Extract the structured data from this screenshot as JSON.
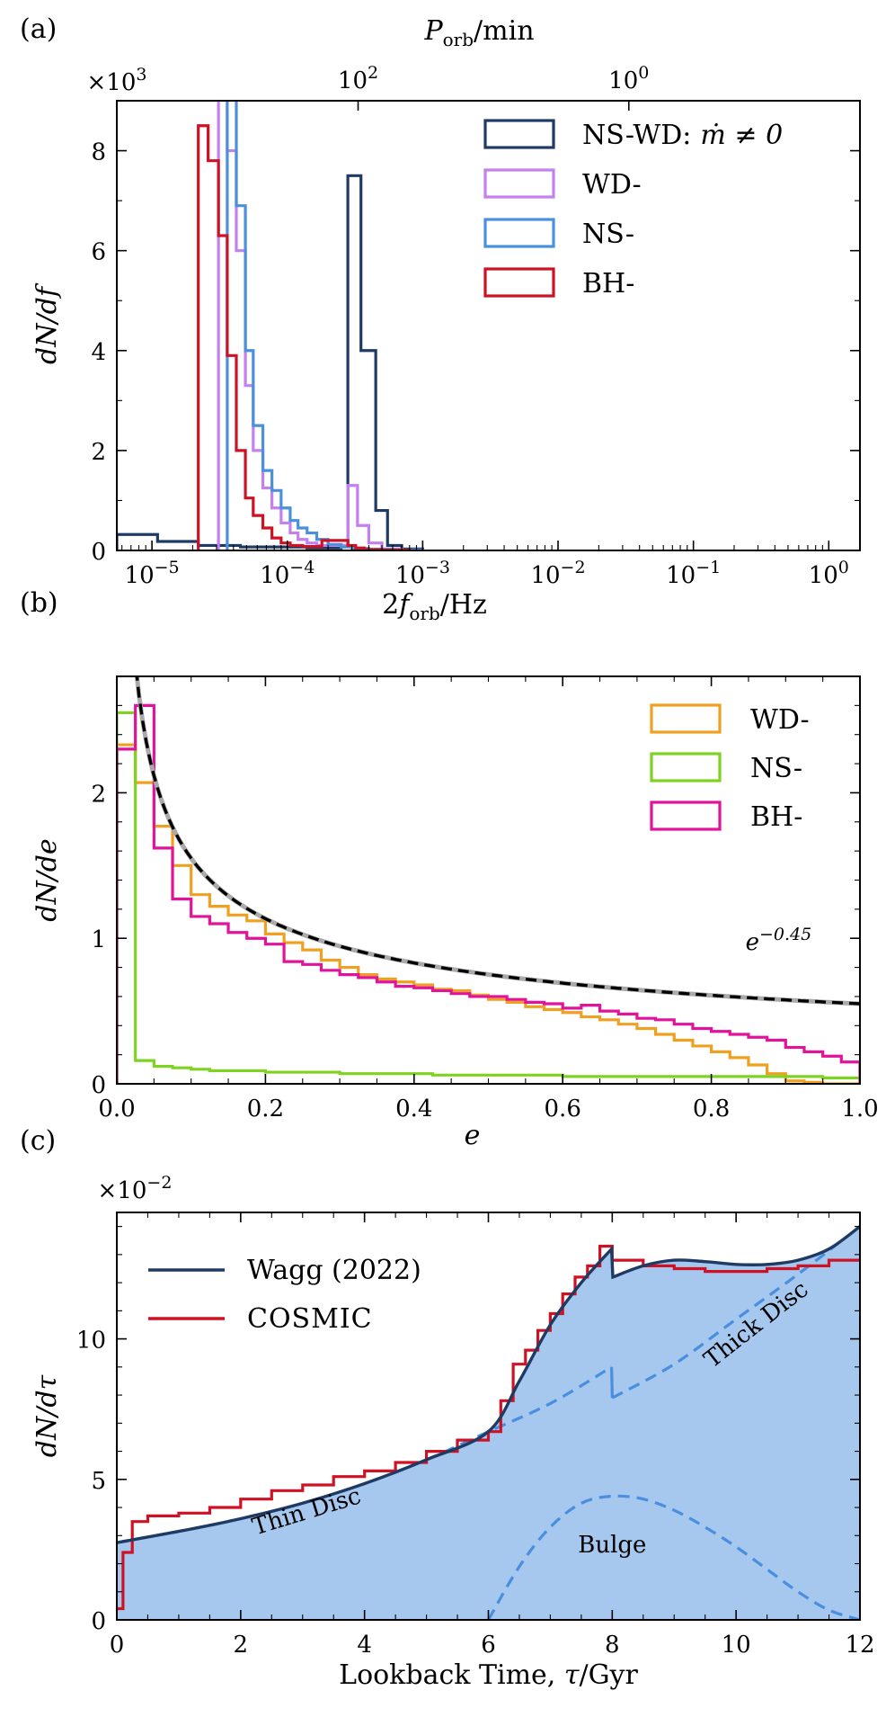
{
  "figure": {
    "panels": [
      "(a)",
      "(b)",
      "(c)"
    ]
  },
  "colors": {
    "ns_wd": "#1f3b63",
    "wd_a": "#c47ff0",
    "ns_a": "#4a90dc",
    "bh_a": "#cf1124",
    "wd_b": "#f0a020",
    "ns_b": "#7ed321",
    "bh_b": "#e0139a",
    "fill_c": "#a6c8ee",
    "dash_c": "#4a8ee0",
    "wagg": "#1f3b63",
    "cosmic": "#cf1124"
  },
  "chart_data": [
    {
      "panel": "(a)",
      "type": "histogram",
      "xscale": "log",
      "xlabel": "2f_orb/Hz",
      "ylabel": "dN/df",
      "top_axis_label": "P_orb/min",
      "top_ticks": [
        {
          "period_min": 100,
          "label": "10^2"
        },
        {
          "period_min": 1,
          "label": "10^0"
        }
      ],
      "y_multiplier": "×10^3",
      "xlim": [
        5.5e-06,
        1.7
      ],
      "ylim": [
        0,
        9
      ],
      "xticks": [
        {
          "v": 1e-05,
          "label": "10^-5"
        },
        {
          "v": 0.0001,
          "label": "10^-4"
        },
        {
          "v": 0.001,
          "label": "10^-3"
        },
        {
          "v": 0.01,
          "label": "10^-2"
        },
        {
          "v": 0.1,
          "label": "10^-1"
        },
        {
          "v": 1,
          "label": "10^0"
        }
      ],
      "yticks": [
        0,
        2,
        4,
        6,
        8
      ],
      "legend_position": "top-right",
      "series": [
        {
          "name": "NS-WD: ṁ ≠ 0",
          "legend": "NS-WD:",
          "legend_math": "ṁ ≠ 0",
          "color_key": "ns_wd",
          "edges": [
            5.5e-06,
            1.1e-05,
            2.2e-05,
            4.5e-05,
            0.00014,
            0.00025,
            0.00028,
            0.00035,
            0.00045,
            0.00055,
            0.0007,
            0.001
          ],
          "values": [
            0.32,
            0.18,
            0.1,
            0.07,
            0.05,
            0.1,
            7.5,
            4.0,
            0.8,
            0.1,
            0.03
          ]
        },
        {
          "name": "WD-",
          "color_key": "wd_a",
          "edges": [
            3.1e-05,
            3.6e-05,
            4.2e-05,
            4.9e-05,
            5.6e-05,
            6.6e-05,
            7.7e-05,
            9e-05,
            0.000105,
            0.00012,
            0.00014,
            0.000165,
            0.0002,
            0.00028,
            0.00033,
            0.0004,
            0.0005,
            0.0007
          ],
          "values": [
            9.5,
            8.0,
            6.0,
            3.3,
            2.0,
            1.25,
            0.85,
            0.55,
            0.35,
            0.22,
            0.15,
            0.1,
            0.1,
            1.3,
            0.5,
            0.15,
            0.03
          ]
        },
        {
          "name": "NS-",
          "color_key": "ns_a",
          "edges": [
            3.6e-05,
            4.2e-05,
            4.9e-05,
            5.6e-05,
            6.6e-05,
            7.7e-05,
            9e-05,
            0.000105,
            0.00012,
            0.00014,
            0.000165,
            0.0002,
            0.00025,
            0.0003,
            0.0004,
            0.0006,
            0.001
          ],
          "values": [
            9.5,
            6.9,
            4.0,
            2.5,
            1.6,
            1.2,
            0.85,
            0.6,
            0.45,
            0.35,
            0.22,
            0.12,
            0.07,
            0.04,
            0.02,
            0.01
          ]
        },
        {
          "name": "BH-",
          "color_key": "bh_a",
          "edges": [
            2.2e-05,
            2.6e-05,
            3.1e-05,
            3.6e-05,
            4.2e-05,
            4.9e-05,
            5.6e-05,
            6.6e-05,
            7.7e-05,
            9e-05,
            0.000105,
            0.00013,
            0.00018,
            0.00028,
            0.00032,
            0.00037,
            0.0005,
            0.0008
          ],
          "values": [
            8.5,
            7.8,
            6.3,
            3.9,
            2.0,
            1.05,
            0.7,
            0.45,
            0.25,
            0.15,
            0.1,
            0.08,
            0.2,
            0.1,
            0.05,
            0.02,
            0.01
          ]
        }
      ]
    },
    {
      "panel": "(b)",
      "type": "histogram",
      "xlabel": "e",
      "ylabel": "dN/de",
      "xlim": [
        0,
        1
      ],
      "ylim": [
        0,
        2.8
      ],
      "xticks": [
        0.0,
        0.2,
        0.4,
        0.6,
        0.8,
        1.0
      ],
      "xtick_labels": [
        "0.0",
        "0.2",
        "0.4",
        "0.6",
        "0.8",
        "1.0"
      ],
      "yticks": [
        0,
        1,
        2
      ],
      "legend_position": "top-right",
      "fit": {
        "label": "e^-0.45",
        "coef": 0.55,
        "exponent": -0.45
      },
      "bin_width": 0.025,
      "series": [
        {
          "name": "WD-",
          "color_key": "wd_b",
          "values": [
            2.33,
            2.07,
            1.77,
            1.5,
            1.3,
            1.22,
            1.16,
            1.12,
            1.03,
            0.97,
            0.92,
            0.85,
            0.8,
            0.75,
            0.72,
            0.7,
            0.68,
            0.65,
            0.64,
            0.61,
            0.58,
            0.56,
            0.53,
            0.51,
            0.49,
            0.46,
            0.44,
            0.41,
            0.38,
            0.34,
            0.3,
            0.26,
            0.22,
            0.18,
            0.13,
            0.07,
            0.02,
            0.01,
            0.0,
            0.0
          ]
        },
        {
          "name": "NS-",
          "color_key": "ns_b",
          "values": [
            2.55,
            0.16,
            0.12,
            0.11,
            0.1,
            0.09,
            0.09,
            0.09,
            0.08,
            0.08,
            0.08,
            0.08,
            0.07,
            0.07,
            0.07,
            0.07,
            0.07,
            0.06,
            0.06,
            0.06,
            0.06,
            0.06,
            0.06,
            0.06,
            0.05,
            0.05,
            0.05,
            0.05,
            0.05,
            0.05,
            0.05,
            0.05,
            0.05,
            0.05,
            0.05,
            0.05,
            0.05,
            0.05,
            0.04,
            0.04
          ]
        },
        {
          "name": "BH-",
          "color_key": "bh_b",
          "values": [
            2.3,
            2.6,
            1.62,
            1.27,
            1.15,
            1.1,
            1.04,
            1.0,
            0.96,
            0.84,
            0.82,
            0.78,
            0.75,
            0.73,
            0.7,
            0.67,
            0.66,
            0.64,
            0.62,
            0.6,
            0.6,
            0.58,
            0.56,
            0.55,
            0.52,
            0.54,
            0.5,
            0.48,
            0.45,
            0.44,
            0.41,
            0.38,
            0.36,
            0.34,
            0.32,
            0.3,
            0.25,
            0.22,
            0.19,
            0.15
          ]
        }
      ]
    },
    {
      "panel": "(c)",
      "type": "line",
      "xlabel": "Lookback Time, τ/Gyr",
      "ylabel": "dN/dτ",
      "y_multiplier": "×10^-2",
      "xlim": [
        0,
        12
      ],
      "ylim": [
        0,
        14.5
      ],
      "xticks": [
        0,
        2,
        4,
        6,
        8,
        10,
        12
      ],
      "yticks": [
        0,
        5,
        10
      ],
      "legend_position": "top-left",
      "series": [
        {
          "name": "Wagg (2022)",
          "color_key": "wagg",
          "kind": "total_filled",
          "x": [
            0,
            1,
            2,
            3,
            4,
            5,
            6,
            6.5,
            7,
            7.5,
            7.99,
            8.01,
            8.5,
            9,
            9.5,
            10,
            10.5,
            11,
            11.5,
            12
          ],
          "y": [
            2.75,
            3.15,
            3.6,
            4.15,
            4.85,
            5.7,
            6.7,
            8.5,
            10.5,
            12.0,
            13.2,
            12.2,
            12.6,
            12.8,
            12.75,
            12.65,
            12.65,
            12.8,
            13.2,
            14.0
          ]
        },
        {
          "name": "COSMIC",
          "color_key": "cosmic",
          "kind": "step",
          "edges": [
            0,
            0.1,
            0.25,
            0.5,
            1.0,
            1.5,
            2.0,
            2.5,
            3.0,
            3.5,
            4.0,
            4.5,
            5.0,
            5.5,
            6.0,
            6.2,
            6.4,
            6.6,
            6.8,
            7.0,
            7.2,
            7.4,
            7.6,
            7.8,
            8.0,
            8.5,
            9.0,
            9.5,
            10.0,
            10.5,
            11.0,
            11.5,
            12.0
          ],
          "values": [
            0.4,
            2.4,
            3.5,
            3.7,
            3.8,
            4.0,
            4.3,
            4.6,
            4.8,
            5.1,
            5.3,
            5.6,
            6.0,
            6.4,
            6.7,
            7.8,
            9.1,
            9.6,
            10.3,
            10.9,
            11.6,
            12.2,
            12.6,
            13.3,
            12.8,
            12.6,
            12.5,
            12.4,
            12.4,
            12.5,
            12.6,
            12.8
          ]
        },
        {
          "name": "Thin Disc",
          "kind": "component",
          "x": [
            0,
            1,
            2,
            3,
            4,
            5,
            6,
            7,
            7.99
          ],
          "y": [
            2.75,
            3.15,
            3.6,
            4.15,
            4.85,
            5.7,
            6.7,
            7.7,
            9.0
          ]
        },
        {
          "name": "Thick Disc",
          "kind": "component",
          "x": [
            8.0,
            9,
            10,
            11,
            12
          ],
          "y": [
            7.9,
            9.1,
            10.7,
            12.3,
            14.0
          ]
        },
        {
          "name": "Bulge",
          "kind": "component",
          "x": [
            6.0,
            6.5,
            7,
            7.5,
            8,
            8.5,
            9,
            9.5,
            10,
            10.5,
            11,
            11.5,
            12
          ],
          "y": [
            0.0,
            1.9,
            3.3,
            4.15,
            4.4,
            4.3,
            3.9,
            3.3,
            2.6,
            1.8,
            1.0,
            0.35,
            0.0
          ]
        }
      ],
      "annotations": [
        "Thin Disc",
        "Thick Disc",
        "Bulge"
      ]
    }
  ]
}
